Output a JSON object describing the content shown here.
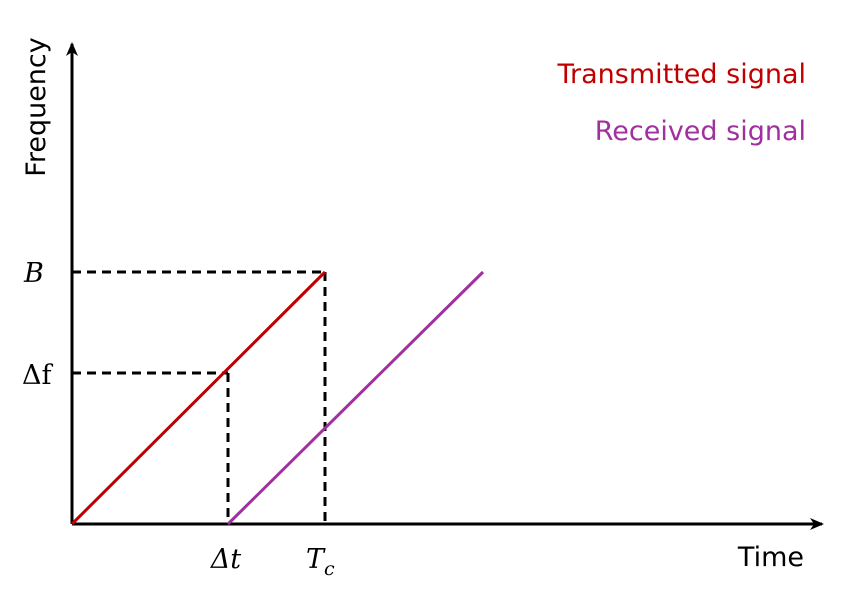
{
  "axes": {
    "y_label": "Frequency",
    "x_label": "Time"
  },
  "legend": {
    "transmitted": "Transmitted signal",
    "received": "Received signal"
  },
  "marks": {
    "bandwidth": "B",
    "delta_f": "Δf",
    "delta_t": "Δt",
    "chirp_time": {
      "base": "T",
      "sub": "c"
    }
  }
}
